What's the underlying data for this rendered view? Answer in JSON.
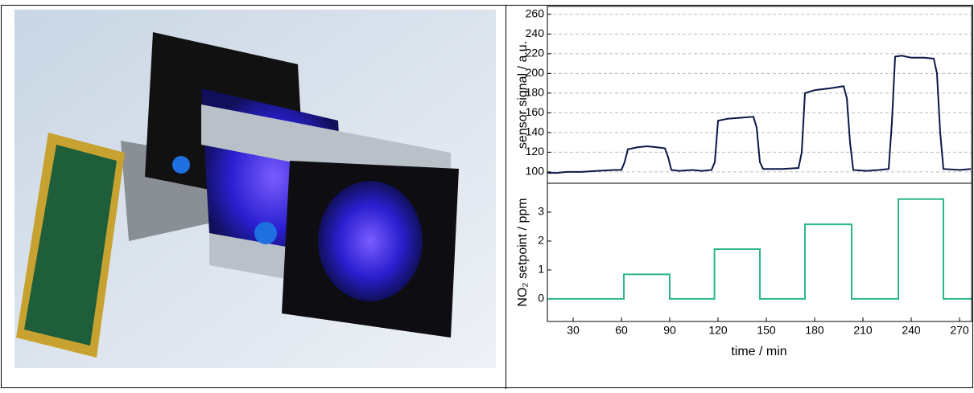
{
  "chart_data": [
    {
      "type": "line",
      "ylabel": "sensor signal / a.u.",
      "grid": true,
      "xlim": [
        14,
        277.5
      ],
      "ylim": [
        88.5,
        268
      ],
      "yticks": [
        100,
        120,
        140,
        160,
        180,
        200,
        220,
        240,
        260
      ],
      "x": [
        14,
        20,
        26,
        35,
        45,
        56,
        60,
        62,
        64,
        70,
        76,
        82,
        87,
        89,
        91,
        96,
        104,
        110,
        116,
        118,
        120,
        126,
        134,
        142,
        144,
        146,
        148,
        160,
        170,
        172,
        174,
        180,
        190,
        198,
        200,
        202,
        204,
        212,
        220,
        226,
        228,
        230,
        234,
        240,
        248,
        254,
        256,
        258,
        260,
        270,
        277
      ],
      "series": [
        {
          "color": "#0b1747",
          "values": [
            99,
            99,
            100,
            100,
            101,
            102,
            102,
            110,
            123,
            125,
            126,
            125,
            124,
            115,
            102,
            101,
            102,
            101,
            102,
            110,
            152,
            154,
            155,
            156,
            145,
            110,
            103,
            103,
            104,
            120,
            180,
            183,
            185,
            187,
            175,
            130,
            102,
            101,
            102,
            103,
            150,
            217,
            218,
            216,
            216,
            215,
            200,
            140,
            103,
            102,
            103
          ]
        }
      ]
    },
    {
      "type": "line",
      "ylabel": "NO₂ setpoint / ppm",
      "xlabel": "time / min",
      "grid": false,
      "xlim": [
        14,
        277.5
      ],
      "ylim": [
        -0.78,
        4.0
      ],
      "yticks": [
        0,
        1,
        2,
        3
      ],
      "xticks": [
        30,
        60,
        90,
        120,
        150,
        180,
        210,
        240,
        270
      ],
      "x": [
        14,
        61.5,
        61.5,
        90,
        90,
        117.8,
        117.8,
        146,
        146,
        174,
        174,
        203,
        203,
        232,
        232,
        260,
        260,
        277.5
      ],
      "series": [
        {
          "color": "#2bb58a",
          "values": [
            0,
            0,
            0.85,
            0.85,
            0,
            0,
            1.72,
            1.72,
            0,
            0,
            2.58,
            2.58,
            0,
            0,
            3.45,
            3.45,
            0,
            0
          ]
        }
      ]
    }
  ]
}
